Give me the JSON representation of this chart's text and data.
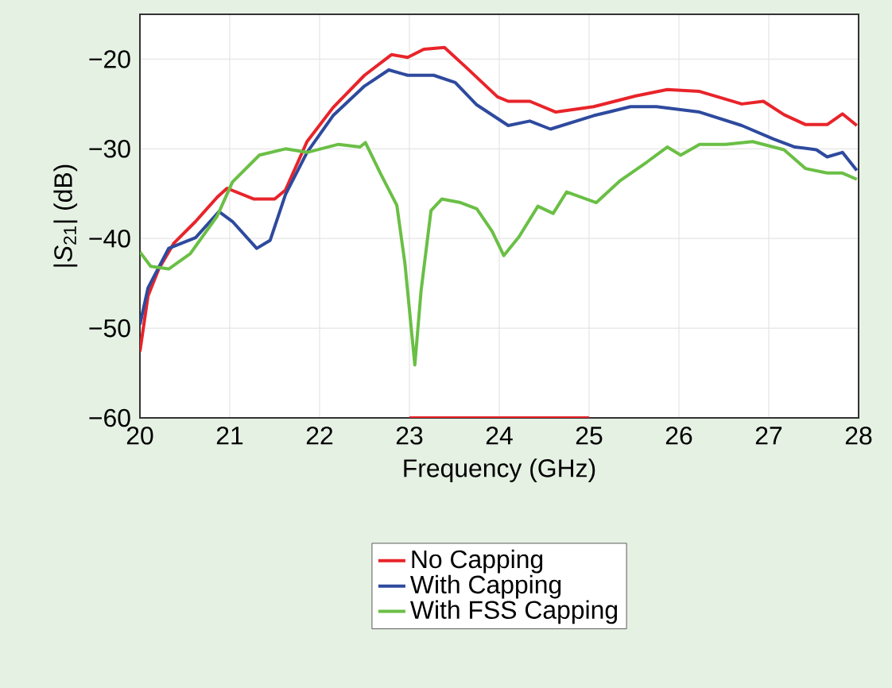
{
  "chart_data": {
    "type": "line",
    "xlabel": "Frequency (GHz)",
    "ylabel": "|*S*$_{21}$| (dB)",
    "xlim": [
      20,
      28
    ],
    "ylim": [
      -60,
      -15
    ],
    "xticks": [
      20,
      21,
      22,
      23,
      24,
      25,
      26,
      27,
      28
    ],
    "yticks": [
      {
        "value": -60,
        "label": "−60"
      },
      {
        "value": -50,
        "label": "−50"
      },
      {
        "value": -40,
        "label": "−40"
      },
      {
        "value": -30,
        "label": "−30"
      },
      {
        "value": -20,
        "label": "−20"
      }
    ],
    "grid": true,
    "legend": "bottom",
    "marker": "none",
    "line_style": "solid",
    "series": [
      {
        "color": "#e8242a",
        "x": [
          23,
          25
        ],
        "values": [
          -60,
          -60
        ]
      },
      {
        "name": "No Capping",
        "color": "#e8242a",
        "x": [
          20,
          20.09,
          20.21,
          20.38,
          20.62,
          20.86,
          20.97,
          21.27,
          21.5,
          21.62,
          21.86,
          22.15,
          22.5,
          22.8,
          22.98,
          23.16,
          23.39,
          23.63,
          23.98,
          24.1,
          24.34,
          24.63,
          25.05,
          25.52,
          25.87,
          26.23,
          26.7,
          26.94,
          27.17,
          27.41,
          27.65,
          27.82,
          27.98
        ],
        "values": [
          -52.6,
          -46.4,
          -43.4,
          -40.5,
          -38.1,
          -35.4,
          -34.4,
          -35.6,
          -35.6,
          -34.6,
          -29.2,
          -25.4,
          -21.8,
          -19.5,
          -19.8,
          -18.9,
          -18.7,
          -20.9,
          -24.2,
          -24.7,
          -24.7,
          -25.9,
          -25.3,
          -24.1,
          -23.4,
          -23.6,
          -25.0,
          -24.7,
          -26.2,
          -27.3,
          -27.3,
          -26.1,
          -27.4
        ]
      },
      {
        "name": "With Capping",
        "color": "#2e4a9e",
        "x": [
          20,
          20.09,
          20.32,
          20.62,
          20.88,
          21.03,
          21.3,
          21.45,
          21.62,
          21.86,
          22.15,
          22.5,
          22.77,
          22.98,
          23.27,
          23.51,
          23.75,
          24.1,
          24.34,
          24.57,
          25.05,
          25.46,
          25.75,
          26.23,
          26.7,
          27.05,
          27.29,
          27.53,
          27.65,
          27.82,
          27.98
        ],
        "values": [
          -49.6,
          -45.5,
          -41.1,
          -39.9,
          -37.0,
          -38.1,
          -41.1,
          -40.2,
          -35.1,
          -30.4,
          -26.3,
          -23.0,
          -21.2,
          -21.8,
          -21.8,
          -22.6,
          -25.1,
          -27.4,
          -26.9,
          -27.8,
          -26.3,
          -25.3,
          -25.3,
          -25.9,
          -27.4,
          -28.9,
          -29.8,
          -30.1,
          -30.9,
          -30.4,
          -32.4
        ]
      },
      {
        "name": "With FSS Capping",
        "color": "#6abf45",
        "x": [
          20,
          20.12,
          20.32,
          20.56,
          20.86,
          21.03,
          21.33,
          21.62,
          21.86,
          22.21,
          22.45,
          22.51,
          22.68,
          22.86,
          22.95,
          23.06,
          23.13,
          23.24,
          23.36,
          23.57,
          23.75,
          23.92,
          24.05,
          24.22,
          24.43,
          24.6,
          24.75,
          25.08,
          25.34,
          25.64,
          25.87,
          26.02,
          26.23,
          26.52,
          26.82,
          27.17,
          27.41,
          27.65,
          27.82,
          27.98
        ],
        "values": [
          -41.5,
          -43.1,
          -43.4,
          -41.7,
          -37.5,
          -33.7,
          -30.7,
          -30.0,
          -30.4,
          -29.5,
          -29.8,
          -29.3,
          -32.8,
          -36.3,
          -42.8,
          -54.1,
          -45.8,
          -36.9,
          -35.6,
          -36.0,
          -36.7,
          -39.2,
          -41.9,
          -39.8,
          -36.4,
          -37.2,
          -34.8,
          -36.0,
          -33.6,
          -31.5,
          -29.8,
          -30.7,
          -29.5,
          -29.5,
          -29.2,
          -30.1,
          -32.2,
          -32.7,
          -32.7,
          -33.4
        ]
      }
    ]
  }
}
